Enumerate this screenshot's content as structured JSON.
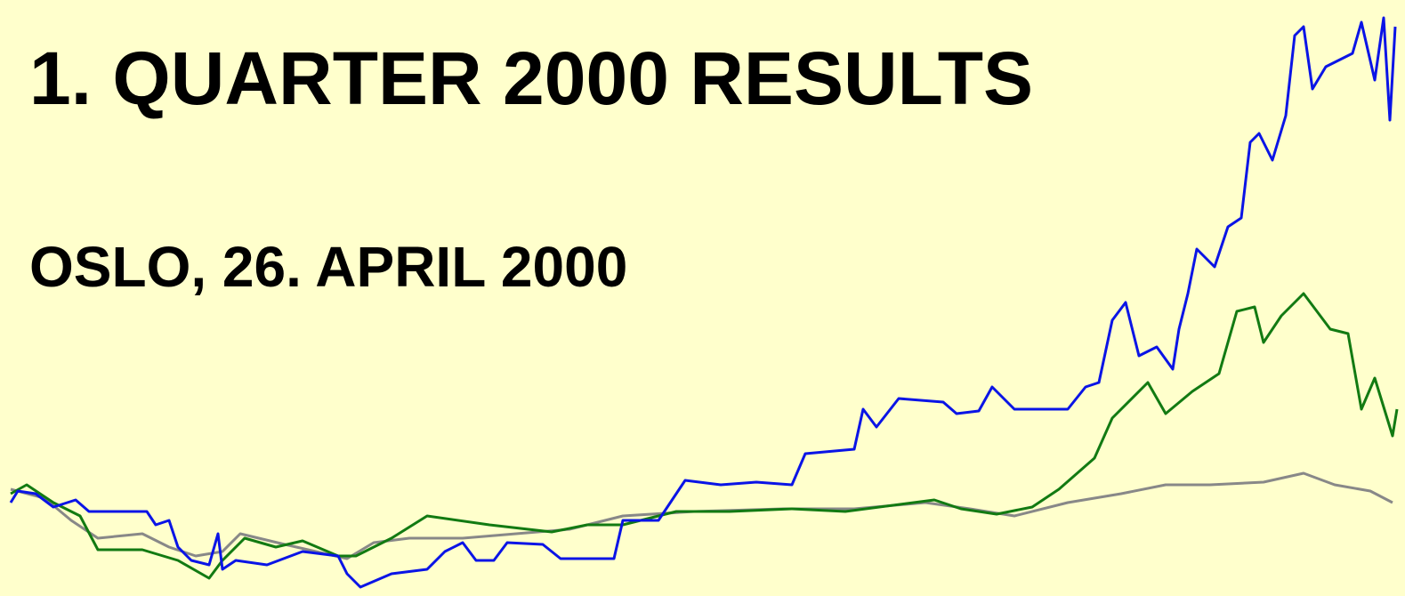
{
  "title": "1. QUARTER 2000 RESULTS",
  "subtitle": "OSLO, 26. APRIL 2000"
}
